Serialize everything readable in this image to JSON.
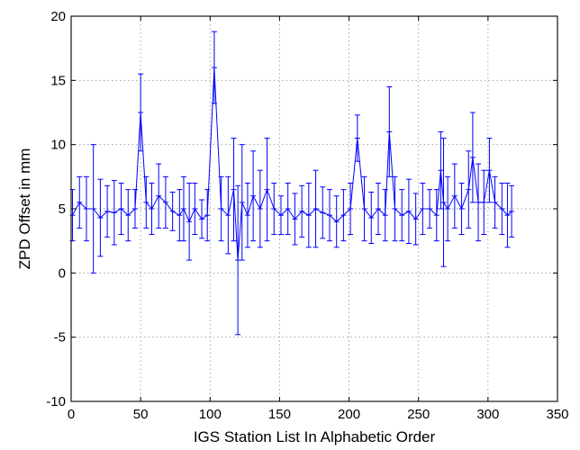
{
  "chart_data": {
    "type": "line",
    "title": "",
    "xlabel": "IGS Station List In Alphabetic Order",
    "ylabel": "ZPD Offset in mm",
    "xlim": [
      0,
      350
    ],
    "ylim": [
      -10,
      20
    ],
    "xticks": [
      0,
      50,
      100,
      150,
      200,
      250,
      300,
      350
    ],
    "yticks": [
      -10,
      -5,
      0,
      5,
      10,
      15,
      20
    ],
    "grid": true,
    "legend": "none",
    "series_color": "#0000ff",
    "series": [
      {
        "name": "",
        "style": "line with vertical error bars",
        "x": [
          1,
          6,
          11,
          16,
          21,
          26,
          31,
          36,
          41,
          46,
          50,
          54,
          58,
          63,
          68,
          73,
          78,
          81,
          85,
          89,
          94,
          98,
          103,
          108,
          113,
          117,
          120,
          123,
          127,
          131,
          136,
          141,
          146,
          151,
          156,
          161,
          166,
          171,
          176,
          181,
          186,
          191,
          196,
          201,
          206,
          211,
          216,
          221,
          226,
          229,
          233,
          238,
          243,
          248,
          253,
          258,
          263,
          266,
          268,
          271,
          276,
          281,
          286,
          289,
          293,
          297,
          301,
          305,
          310,
          314,
          317
        ],
        "y": [
          4.5,
          5.5,
          5.0,
          5.0,
          4.3,
          4.8,
          4.7,
          5.0,
          4.5,
          5.0,
          12.5,
          5.5,
          5.0,
          6.0,
          5.5,
          4.8,
          4.5,
          5.0,
          4.0,
          5.0,
          4.2,
          4.5,
          16.0,
          5.0,
          4.5,
          6.5,
          1.0,
          5.5,
          4.5,
          6.0,
          5.0,
          6.5,
          5.0,
          4.5,
          5.0,
          4.2,
          4.8,
          4.5,
          5.0,
          4.7,
          4.5,
          4.0,
          4.5,
          5.0,
          10.5,
          5.0,
          4.3,
          5.0,
          4.5,
          11.0,
          5.0,
          4.5,
          4.8,
          4.2,
          5.0,
          5.0,
          4.5,
          8.0,
          5.5,
          5.0,
          6.0,
          5.0,
          6.5,
          9.0,
          5.5,
          5.5,
          8.0,
          5.5,
          5.0,
          4.5,
          4.8
        ],
        "error": [
          2.0,
          2.0,
          2.5,
          5.0,
          3.0,
          2.0,
          2.5,
          2.0,
          2.0,
          1.5,
          3.0,
          2.0,
          2.0,
          2.5,
          2.0,
          1.5,
          2.0,
          2.5,
          3.0,
          2.0,
          1.5,
          2.0,
          2.8,
          2.5,
          3.0,
          4.0,
          5.8,
          4.5,
          2.5,
          3.5,
          3.0,
          4.0,
          2.0,
          1.5,
          2.0,
          2.0,
          2.0,
          2.5,
          3.0,
          2.0,
          2.0,
          2.0,
          2.0,
          2.0,
          1.8,
          2.5,
          2.0,
          2.0,
          2.0,
          3.5,
          2.5,
          2.0,
          2.5,
          2.0,
          2.0,
          1.5,
          2.0,
          3.0,
          5.0,
          2.5,
          2.5,
          2.0,
          3.0,
          3.5,
          3.0,
          2.5,
          2.5,
          2.0,
          2.0,
          2.5,
          2.0
        ]
      }
    ]
  }
}
